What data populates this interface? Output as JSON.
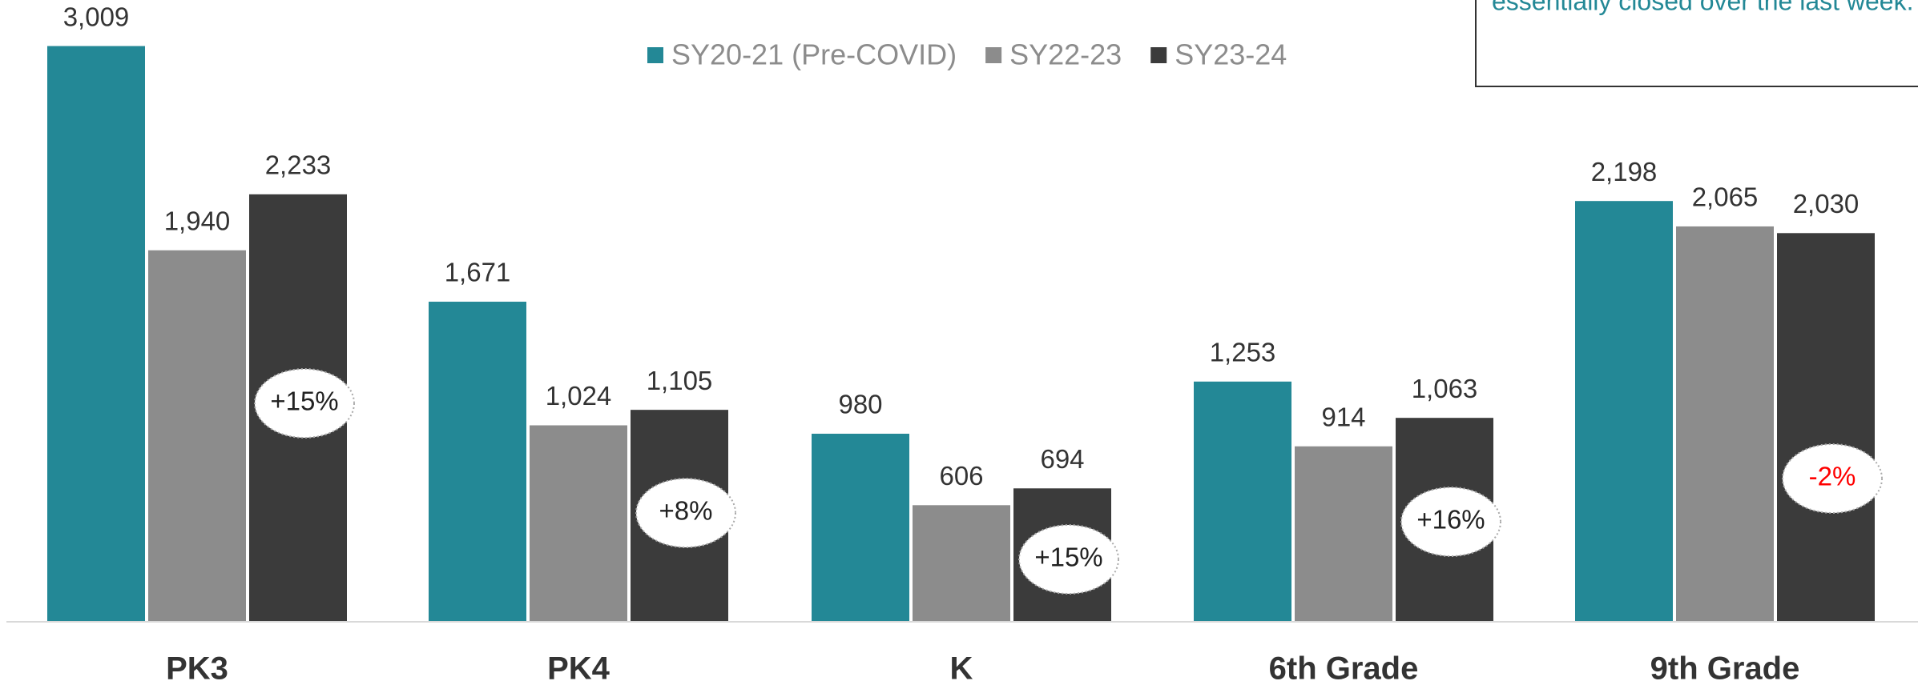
{
  "chart_data": {
    "type": "bar",
    "annotation": "essentially closed over the last week.",
    "categories": [
      "PK3",
      "PK4",
      "K",
      "6th Grade",
      "9th Grade"
    ],
    "series": [
      {
        "name": "SY20-21 (Pre-COVID)",
        "color": "#238896",
        "values": [
          3009,
          1671,
          980,
          1253,
          2198
        ],
        "value_labels": [
          "3,009",
          "1,671",
          "980",
          "1,253",
          "2,198"
        ]
      },
      {
        "name": "SY22-23",
        "color": "#8c8c8c",
        "values": [
          1940,
          1024,
          606,
          914,
          2065
        ],
        "value_labels": [
          "1,940",
          "1,024",
          "606",
          "914",
          "2,065"
        ]
      },
      {
        "name": "SY23-24",
        "color": "#3b3b3b",
        "values": [
          2233,
          1105,
          694,
          1063,
          2030
        ],
        "value_labels": [
          "2,233",
          "1,105",
          "694",
          "1,063",
          "2,030"
        ]
      }
    ],
    "change_labels": [
      "+15%",
      "+8%",
      "+15%",
      "+16%",
      "-2%"
    ],
    "change_colors": [
      "#222222",
      "#222222",
      "#222222",
      "#222222",
      "#ff0000"
    ],
    "ylim": [
      0,
      3250
    ],
    "legend": "top"
  }
}
